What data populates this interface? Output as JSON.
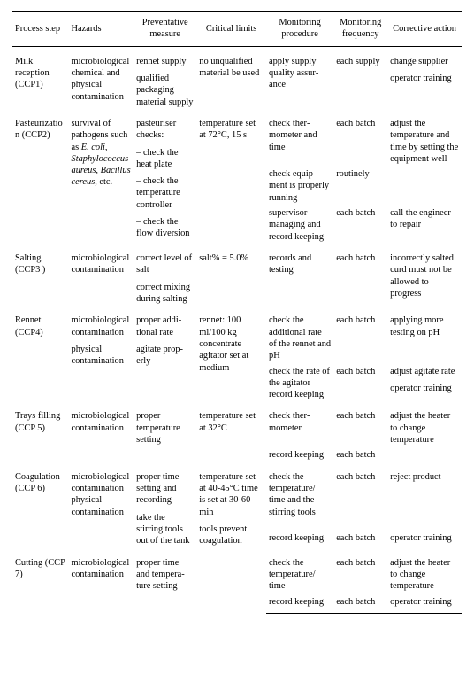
{
  "columns": [
    "Process step",
    "Hazards",
    "Preventative measure",
    "Critical limits",
    "Monitoring procedure",
    "Monitor­ing fre­quency",
    "Corrective action"
  ],
  "rows": [
    {
      "step": "Milk reception (CCP1)",
      "haz": "microbiologi­cal chemical and physical contamination",
      "prev": [
        "rennet supply",
        "qualified packaging material supply"
      ],
      "crit": "no unqualified material be used",
      "mon": "apply supply quality assur­ance",
      "freq": "each supply",
      "corr": [
        "change supplier",
        "operator train­ing"
      ]
    },
    {
      "step": "Pasteurization (CCP2)",
      "haz_html": "survival of pathogens such as <i>E. coli, Staphylococ­cus aureus, Bacillus cer­eus</i>, etc.",
      "prev": [
        "pasteuriser checks:",
        "– check the heat plate",
        "– check the temperature controller",
        "– check the flow diversion"
      ],
      "crit": "temperature set at 72°C, 15 s",
      "mon_rows": [
        {
          "mon": "check ther­mometer and time",
          "freq": "each batch",
          "corr": "adjust the temperature and time by setting the equipment well"
        },
        {
          "mon": "check equip­ment is prop­erly running",
          "freq": "routinely",
          "corr": ""
        },
        {
          "mon": "supervisor managing and record keeping",
          "freq": "each batch",
          "corr": "call the engi­neer to repair"
        }
      ]
    },
    {
      "step": "Salting (CCP3 )",
      "haz": "microbiologi­cal contamina­tion",
      "prev": [
        "correct level of salt",
        "correct mixing during salting"
      ],
      "crit": "salt% = 5.0%",
      "mon": "records and testing",
      "freq": "each batch",
      "corr": [
        "incorrectly salted curd must not be allowed to progress"
      ]
    },
    {
      "step": "Rennet (CCP4)",
      "haz_rows": [
        "microbiologi­cal contamina­tion",
        "physical contamination"
      ],
      "prev": [
        "proper addi­tional rate",
        "agitate prop­erly"
      ],
      "crit": "rennet: 100 ml/100 kg concentrate agitator set at medium",
      "mon_rows": [
        {
          "mon": "check the additional rate of the rennet and pH",
          "freq": "each batch",
          "corr": "applying more testing on pH"
        },
        {
          "mon": "check the rate of the agitator record keeping",
          "freq": "each batch",
          "corr_list": [
            "adjust agitate rate",
            "operator train­ing"
          ]
        }
      ]
    },
    {
      "step": "Trays filling (CCP 5)",
      "haz": "microbiologi­cal contamina­tion",
      "prev": [
        "proper temperature setting"
      ],
      "crit": "temperature set at 32°C",
      "mon_rows": [
        {
          "mon": "check ther­mometer",
          "freq": "each batch",
          "corr": "adjust the heater to change temperature"
        },
        {
          "mon": "record keeping",
          "freq": "each batch",
          "corr": ""
        }
      ]
    },
    {
      "step": "Coagulation (CCP 6)",
      "haz": "microbiologi­cal contamina­tion physical contamination",
      "prev": [
        "proper time setting and recording",
        "take the stirring tools out of the tank"
      ],
      "crit_list": [
        "temperature set at 40-45°C time is set at 30-60 min",
        "tools prevent coagulation"
      ],
      "mon_rows": [
        {
          "mon": "check the temperature/ time and the stirring tools",
          "freq": "each batch",
          "corr": "reject product"
        },
        {
          "mon": "record keeping",
          "freq": "each batch",
          "corr": "operator train­ing"
        }
      ]
    },
    {
      "step": "Cutting (CCP 7)",
      "haz": "microbiologi­cal contamina­tion",
      "prev": [
        "proper time and tempera­ture setting"
      ],
      "crit": "",
      "mon_rows": [
        {
          "mon": "check the temperature/ time",
          "freq": "each batch",
          "corr": "adjust the heater to change temperature"
        },
        {
          "mon": "record keeping",
          "freq": "each batch",
          "corr": "operator train­ing"
        }
      ]
    }
  ]
}
